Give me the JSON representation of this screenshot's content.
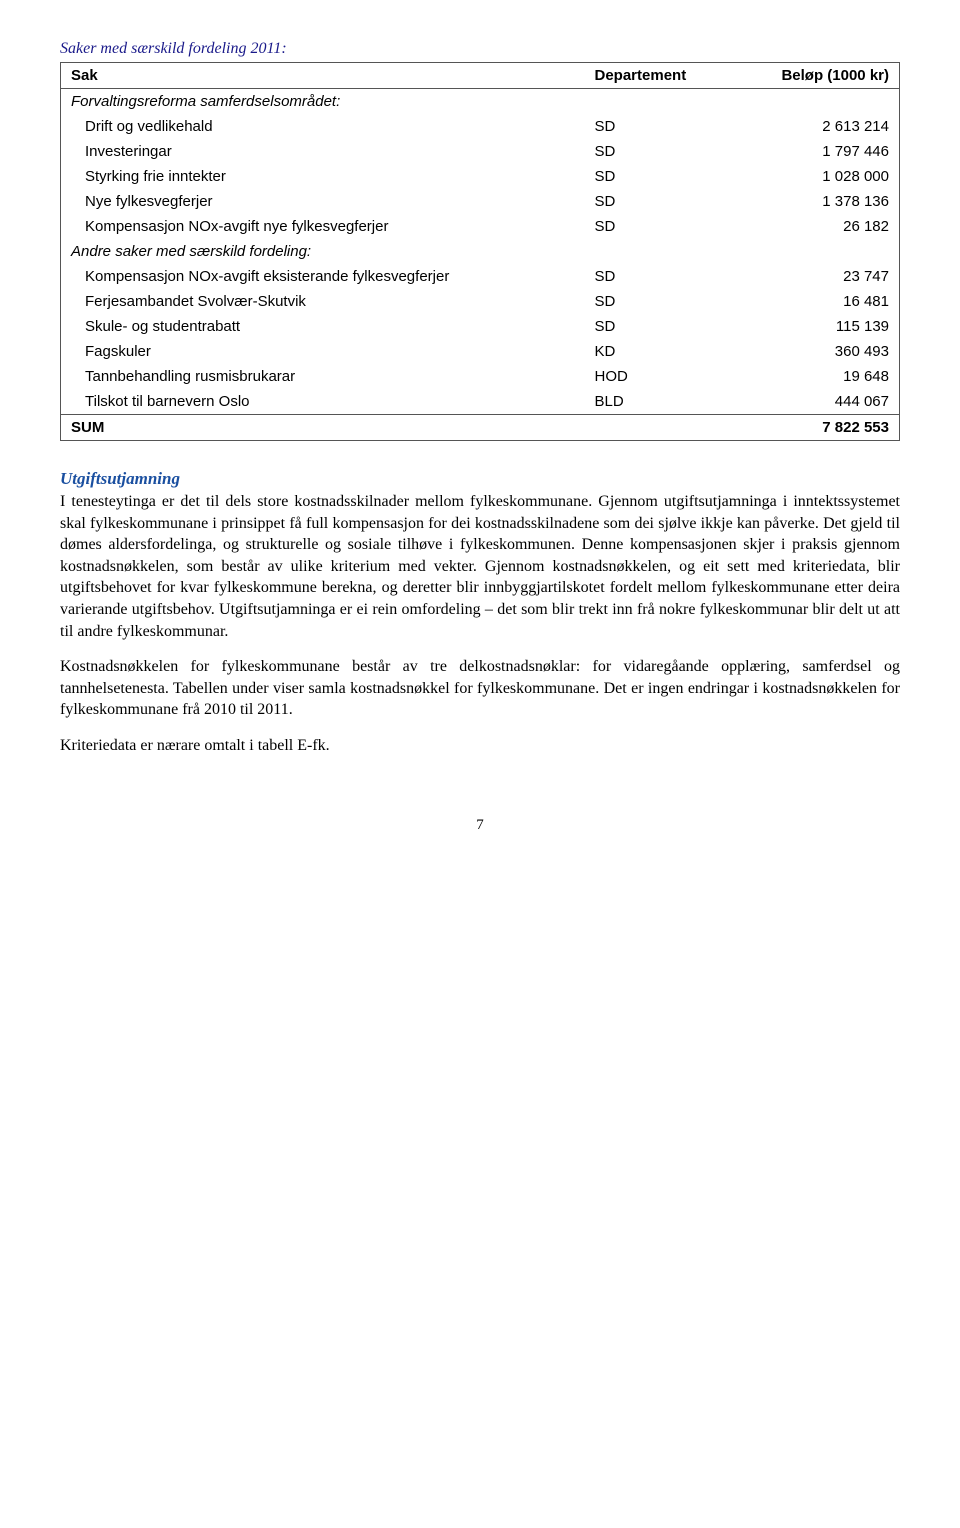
{
  "table": {
    "title": "Saker med særskild fordeling 2011:",
    "headers": [
      "Sak",
      "Departement",
      "Beløp (1000 kr)"
    ],
    "sections": [
      {
        "label": "Forvaltingsreforma samferdselsområdet:",
        "rows": [
          {
            "sak": "Drift og vedlikehald",
            "dep": "SD",
            "belop": "2 613 214"
          },
          {
            "sak": "Investeringar",
            "dep": "SD",
            "belop": "1 797 446"
          },
          {
            "sak": "Styrking frie inntekter",
            "dep": "SD",
            "belop": "1 028 000"
          },
          {
            "sak": "Nye fylkesvegferjer",
            "dep": "SD",
            "belop": "1 378 136"
          },
          {
            "sak": "Kompensasjon NOx-avgift nye fylkesvegferjer",
            "dep": "SD",
            "belop": "26 182"
          }
        ]
      },
      {
        "label": "Andre saker med særskild fordeling:",
        "rows": [
          {
            "sak": "Kompensasjon NOx-avgift eksisterande fylkesvegferjer",
            "dep": "SD",
            "belop": "23 747"
          },
          {
            "sak": "Ferjesambandet Svolvær-Skutvik",
            "dep": "SD",
            "belop": "16 481"
          },
          {
            "sak": "Skule- og studentrabatt",
            "dep": "SD",
            "belop": "115 139"
          },
          {
            "sak": "Fagskuler",
            "dep": "KD",
            "belop": "360 493"
          },
          {
            "sak": "Tannbehandling rusmisbrukarar",
            "dep": "HOD",
            "belop": "19 648"
          },
          {
            "sak": "Tilskot til barnevern Oslo",
            "dep": "BLD",
            "belop": "444 067"
          }
        ]
      }
    ],
    "sum_label": "SUM",
    "sum_value": "7 822 553"
  },
  "heading": "Utgiftsutjamning",
  "paragraphs": [
    "I tenesteytinga er det til dels store kostnadsskilnader mellom fylkeskommunane. Gjennom utgiftsutjamninga i inntektssystemet skal fylkeskommunane i prinsippet få full kompensasjon for dei kostnadsskilnadene som dei sjølve ikkje kan påverke. Det gjeld til dømes aldersfordelinga, og strukturelle og sosiale tilhøve i fylkeskommunen. Denne kompensasjonen skjer i praksis gjennom kostnadsnøkkelen, som består av ulike kriterium med vekter. Gjennom kostnadsnøkkelen, og eit sett med kriteriedata, blir utgiftsbehovet for kvar fylkeskommune berekna, og deretter blir innbyggjartilskotet fordelt mellom fylkeskommunane etter deira varierande utgiftsbehov. Utgiftsutjamninga er ei rein omfordeling – det som blir trekt inn frå nokre fylkeskommunar blir delt ut att til andre fylkeskommunar.",
    "Kostnadsnøkkelen for fylkeskommunane består av tre delkostnadsnøklar: for vidaregåande opplæring, samferdsel og tannhelsetenesta. Tabellen under viser samla kostnadsnøkkel for fylkeskommunane. Det er ingen endringar i kostnadsnøkkelen for fylkeskommunane frå 2010 til 2011.",
    "Kriteriedata er nærare omtalt i tabell E-fk."
  ],
  "page_number": "7"
}
